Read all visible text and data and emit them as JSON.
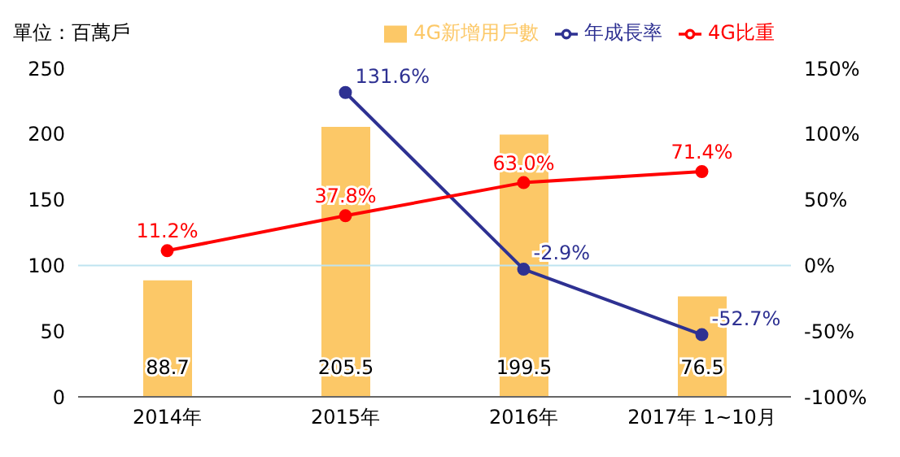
{
  "chart_data": {
    "type": "bar",
    "annotations": [
      "單位：百萬戶"
    ],
    "categories": [
      "2014年",
      "2015年",
      "2016年",
      "2017年 1~10月"
    ],
    "series": [
      {
        "name": "4G新增用戶數",
        "color": "#fcc867",
        "values": [
          88.7,
          205.5,
          199.5,
          76.5
        ],
        "value_labels": [
          "88.7",
          "205.5",
          "199.5",
          "76.5"
        ]
      },
      {
        "name": "年成長率",
        "type": "line",
        "axis": "y2",
        "color": "#2e3192",
        "values": [
          null,
          131.6,
          -2.9,
          -52.7
        ],
        "value_labels": [
          null,
          "131.6%",
          "-2.9%",
          "-52.7%"
        ]
      },
      {
        "name": "4G比重",
        "type": "line",
        "axis": "y2",
        "color": "#ff0000",
        "values": [
          11.2,
          37.8,
          63.0,
          71.4
        ],
        "value_labels": [
          "11.2%",
          "37.8%",
          "63.0%",
          "71.4%"
        ]
      }
    ],
    "ylim": [
      0,
      250
    ],
    "yticks": [
      0,
      50,
      100,
      150,
      200,
      250
    ],
    "y2lim": [
      -100,
      150
    ],
    "y2ticks": [
      {
        "value": -100,
        "label": "-100%"
      },
      {
        "value": -50,
        "label": "-50%"
      },
      {
        "value": 0,
        "label": "0%"
      },
      {
        "value": 50,
        "label": "50%"
      },
      {
        "value": 100,
        "label": "100%"
      },
      {
        "value": 150,
        "label": "150%"
      }
    ],
    "ref_lines": [
      {
        "axis": "y2",
        "value": 0,
        "color": "#bfe3f0"
      }
    ],
    "legend": "top",
    "marker": "circle",
    "grid": false
  }
}
